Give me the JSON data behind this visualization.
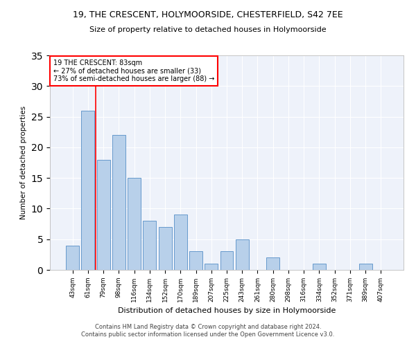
{
  "title1": "19, THE CRESCENT, HOLYMOORSIDE, CHESTERFIELD, S42 7EE",
  "title2": "Size of property relative to detached houses in Holymoorside",
  "xlabel": "Distribution of detached houses by size in Holymoorside",
  "ylabel": "Number of detached properties",
  "categories": [
    "43sqm",
    "61sqm",
    "79sqm",
    "98sqm",
    "116sqm",
    "134sqm",
    "152sqm",
    "170sqm",
    "189sqm",
    "207sqm",
    "225sqm",
    "243sqm",
    "261sqm",
    "280sqm",
    "298sqm",
    "316sqm",
    "334sqm",
    "352sqm",
    "371sqm",
    "389sqm",
    "407sqm"
  ],
  "values": [
    4,
    26,
    18,
    22,
    15,
    8,
    7,
    9,
    3,
    1,
    3,
    5,
    0,
    2,
    0,
    0,
    1,
    0,
    0,
    1,
    0
  ],
  "bar_color": "#b8d0ea",
  "bar_edge_color": "#6699cc",
  "vline_x": 2.0,
  "vline_color": "red",
  "annotation_title": "19 THE CRESCENT: 83sqm",
  "annotation_line1": "← 27% of detached houses are smaller (33)",
  "annotation_line2": "73% of semi-detached houses are larger (88) →",
  "ylim": [
    0,
    35
  ],
  "yticks": [
    0,
    5,
    10,
    15,
    20,
    25,
    30,
    35
  ],
  "footer1": "Contains HM Land Registry data © Crown copyright and database right 2024.",
  "footer2": "Contains public sector information licensed under the Open Government Licence v3.0.",
  "bg_color": "#eef2fa"
}
